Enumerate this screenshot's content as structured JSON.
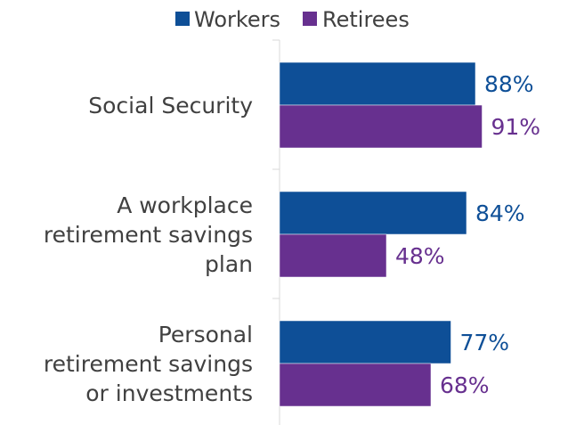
{
  "chart_data": {
    "type": "bar",
    "orientation": "horizontal",
    "title": "",
    "xlabel": "",
    "ylabel": "",
    "xlim": [
      0,
      100
    ],
    "grid": false,
    "legend_position": "top",
    "categories": [
      "Social Security",
      "A workplace retirement savings plan",
      "Personal retirement savings or investments"
    ],
    "category_lines": [
      [
        "Social Security"
      ],
      [
        "A workplace",
        "retirement savings",
        "plan"
      ],
      [
        "Personal",
        "retirement savings",
        "or investments"
      ]
    ],
    "series": [
      {
        "name": "Workers",
        "color": "#0e4f97",
        "values": [
          88,
          84,
          77
        ],
        "labels": [
          "88%",
          "84%",
          "77%"
        ]
      },
      {
        "name": "Retirees",
        "color": "#67308f",
        "values": [
          91,
          48,
          68
        ],
        "labels": [
          "91%",
          "48%",
          "68%"
        ]
      }
    ]
  }
}
